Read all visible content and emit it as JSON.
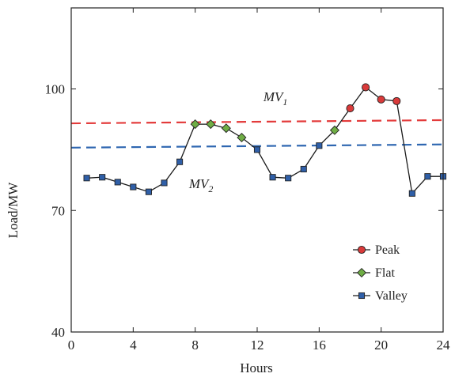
{
  "chart_data": {
    "type": "line",
    "xlabel": "Hours",
    "ylabel": "Load/MW",
    "xlim": [
      0,
      24
    ],
    "ylim": [
      40,
      120
    ],
    "x_ticks": [
      0,
      4,
      8,
      12,
      16,
      20,
      24
    ],
    "x_tick_labels": [
      "0",
      "4",
      "8",
      "12",
      "16",
      "20",
      "24"
    ],
    "y_ticks": [
      40,
      70,
      100
    ],
    "y_tick_labels": [
      "40",
      "70",
      "100"
    ],
    "grid": false,
    "legend_position": "bottom-right",
    "load_curve": {
      "x": [
        1,
        2,
        3,
        4,
        5,
        6,
        7,
        8,
        9,
        10,
        11,
        12,
        13,
        14,
        15,
        16,
        17,
        18,
        19,
        20,
        21,
        22,
        23,
        24
      ],
      "y": [
        78.0,
        78.2,
        77.0,
        75.8,
        74.6,
        76.8,
        82.0,
        91.3,
        91.3,
        90.3,
        88.0,
        85.0,
        78.2,
        78.0,
        80.2,
        86.0,
        89.8,
        95.2,
        100.4,
        97.4,
        97.0,
        74.2,
        78.4,
        78.4
      ],
      "categories": [
        "Valley",
        "Valley",
        "Valley",
        "Valley",
        "Valley",
        "Valley",
        "Valley",
        "Flat",
        "Flat",
        "Flat",
        "Flat",
        "Valley",
        "Valley",
        "Valley",
        "Valley",
        "Valley",
        "Flat",
        "Peak",
        "Peak",
        "Peak",
        "Peak",
        "Valley",
        "Valley",
        "Valley"
      ]
    },
    "series": [
      {
        "name": "Peak",
        "color": "#d93a3a",
        "marker": "circle"
      },
      {
        "name": "Flat",
        "color": "#6fad45",
        "marker": "diamond"
      },
      {
        "name": "Valley",
        "color": "#2f5fa8",
        "marker": "square"
      }
    ],
    "reference_lines": [
      {
        "label": "MV",
        "subscript": "1",
        "color": "#e33b3b",
        "style": "dashed",
        "x": [
          0,
          24
        ],
        "y": [
          91.5,
          92.3
        ]
      },
      {
        "label": "MV",
        "subscript": "2",
        "color": "#2f67b1",
        "style": "dashed",
        "x": [
          0,
          24
        ],
        "y": [
          85.5,
          86.3
        ]
      }
    ],
    "annotations": [
      {
        "text": "MV",
        "subscript": "1",
        "x": 12.4,
        "y": 97
      },
      {
        "text": "MV",
        "subscript": "2",
        "x": 7.6,
        "y": 75.5
      }
    ]
  }
}
